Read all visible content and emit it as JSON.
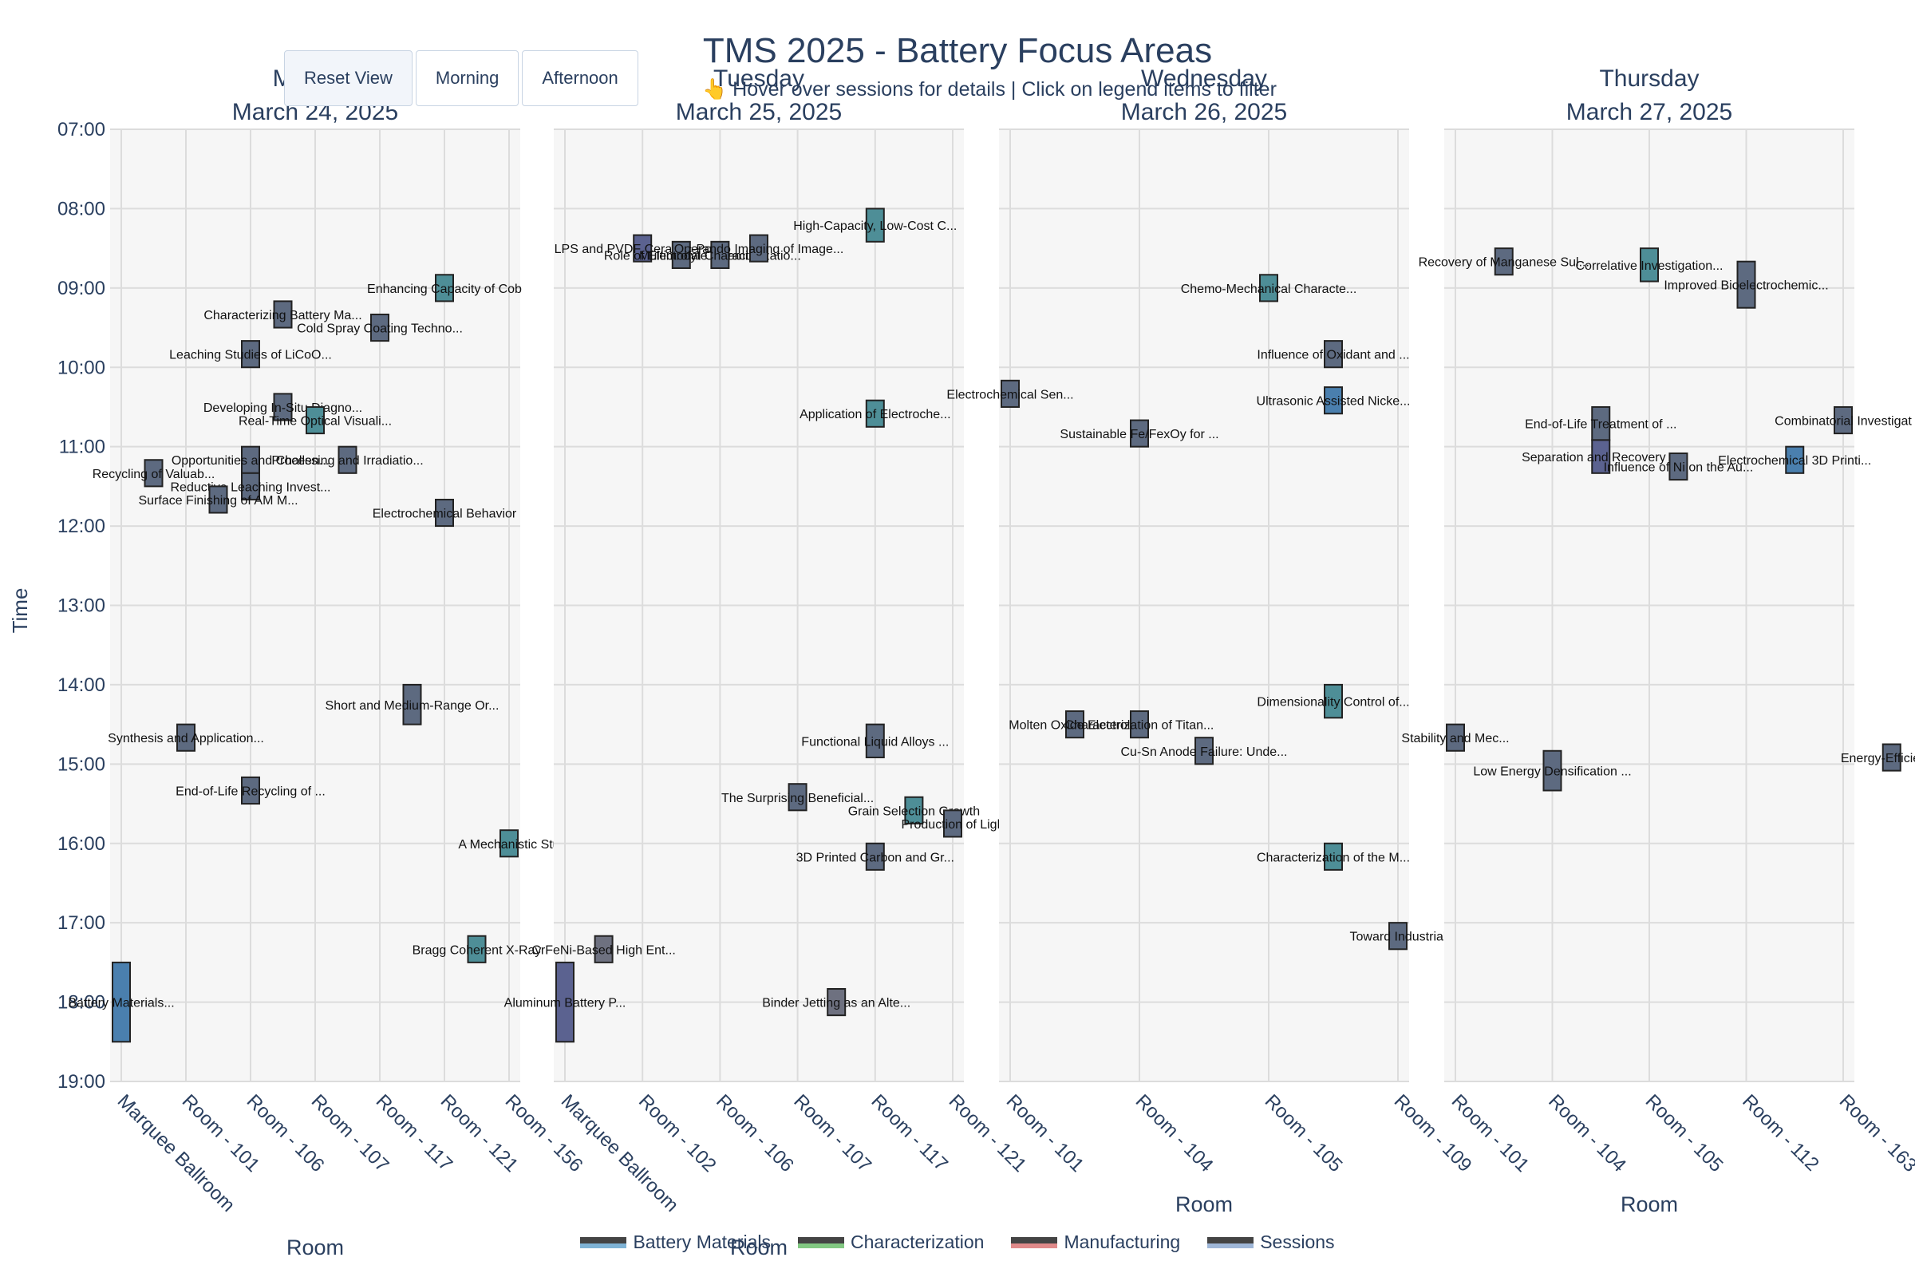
{
  "title": "TMS 2025 - Battery Focus Areas",
  "subtitle": "👆 Hover over sessions for details | Click on legend items to filter",
  "buttons": [
    {
      "label": "Reset View",
      "active": true
    },
    {
      "label": "Morning",
      "active": false
    },
    {
      "label": "Afternoon",
      "active": false
    }
  ],
  "legend": [
    {
      "label": "Battery Materials",
      "color": "#7fb3d5"
    },
    {
      "label": "Characterization",
      "color": "#82c882"
    },
    {
      "label": "Manufacturing",
      "color": "#e08a8a"
    },
    {
      "label": "Sessions",
      "color": "#9fb7d8"
    }
  ],
  "chart_data": {
    "type": "gantt",
    "ylabel": "Time",
    "yticks": [
      "07:00",
      "08:00",
      "09:00",
      "10:00",
      "11:00",
      "12:00",
      "13:00",
      "14:00",
      "15:00",
      "16:00",
      "17:00",
      "18:00",
      "19:00"
    ],
    "ylim": [
      "07:00",
      "19:00"
    ],
    "colors": {
      "slate": "#5d6a80",
      "teal": "#4e8e97",
      "blue": "#4a7fae",
      "indigo": "#5b6290",
      "gray": "#6e7180"
    },
    "panels": [
      {
        "day": "Monday",
        "date": "March 24, 2025",
        "xlabel": "Room",
        "rooms": [
          "Marquee Ballroom",
          "Room - 101",
          "Room - 106",
          "Room - 107",
          "Room - 117",
          "Room - 121",
          "Room - 156"
        ],
        "sessions": [
          {
            "label": "Leaching Studies of LiCoO...",
            "x": 2.0,
            "start": "09:40",
            "end": "10:00",
            "color": "slate"
          },
          {
            "label": "Characterizing Battery Ma...",
            "x": 2.5,
            "start": "09:10",
            "end": "09:30",
            "color": "slate"
          },
          {
            "label": "Cold Spray Coating Techno...",
            "x": 4.0,
            "start": "09:20",
            "end": "09:40",
            "color": "slate"
          },
          {
            "label": "Enhancing Capacity of Cob",
            "x": 5.0,
            "start": "08:50",
            "end": "09:10",
            "color": "teal"
          },
          {
            "label": "Developing In-Situ Diagno...",
            "x": 2.5,
            "start": "10:20",
            "end": "10:40",
            "color": "slate"
          },
          {
            "label": "Real-Time Optical Visuali...",
            "x": 3.0,
            "start": "10:30",
            "end": "10:50",
            "color": "teal"
          },
          {
            "label": "Opportunities and Challen...",
            "x": 2.0,
            "start": "11:00",
            "end": "11:20",
            "color": "slate"
          },
          {
            "label": "Recycling of Valuab...",
            "x": 0.5,
            "start": "11:10",
            "end": "11:30",
            "color": "slate"
          },
          {
            "label": "Reductive Leaching Invest...",
            "x": 2.0,
            "start": "11:20",
            "end": "11:40",
            "color": "slate"
          },
          {
            "label": "Surface Finishing of AM M...",
            "x": 1.5,
            "start": "11:30",
            "end": "11:50",
            "color": "slate"
          },
          {
            "label": "Processing and Irradiatio...",
            "x": 3.5,
            "start": "11:00",
            "end": "11:20",
            "color": "slate"
          },
          {
            "label": "Electrochemical Behavior",
            "x": 5.0,
            "start": "11:40",
            "end": "12:00",
            "color": "slate"
          },
          {
            "label": "Short and Medium-Range Or...",
            "x": 4.5,
            "start": "14:00",
            "end": "14:30",
            "color": "slate"
          },
          {
            "label": "Synthesis and Application...",
            "x": 1.0,
            "start": "14:30",
            "end": "14:50",
            "color": "slate"
          },
          {
            "label": "End-of-Life Recycling of ...",
            "x": 2.0,
            "start": "15:10",
            "end": "15:30",
            "color": "slate"
          },
          {
            "label": "A Mechanistic Stu",
            "x": 6.0,
            "start": "15:50",
            "end": "16:10",
            "color": "teal"
          },
          {
            "label": "Bragg Coherent X-Ray",
            "x": 5.5,
            "start": "17:10",
            "end": "17:30",
            "color": "teal"
          },
          {
            "label": "Battery Materials...",
            "x": 0.0,
            "start": "17:30",
            "end": "18:30",
            "color": "blue"
          }
        ]
      },
      {
        "day": "Tuesday",
        "date": "March 25, 2025",
        "xlabel": "Room",
        "rooms": [
          "Marquee Ballroom",
          "Room - 102",
          "Room - 106",
          "Room - 107",
          "Room - 117",
          "Room - 121"
        ],
        "sessions": [
          {
            "label": "LPS and PVDF Ceramic-Poly...",
            "x": 1.0,
            "start": "08:20",
            "end": "08:40",
            "color": "indigo"
          },
          {
            "label": "Role of Electrolyte Chemi...",
            "x": 1.5,
            "start": "08:25",
            "end": "08:45",
            "color": "slate"
          },
          {
            "label": "Multimodal Characterizatio...",
            "x": 2.0,
            "start": "08:25",
            "end": "08:45",
            "color": "slate"
          },
          {
            "label": "Operando Imaging of Image...",
            "x": 2.5,
            "start": "08:20",
            "end": "08:40",
            "color": "slate"
          },
          {
            "label": "High-Capacity, Low-Cost C...",
            "x": 4.0,
            "start": "08:00",
            "end": "08:25",
            "color": "teal"
          },
          {
            "label": "Application of Electroche...",
            "x": 4.0,
            "start": "10:25",
            "end": "10:45",
            "color": "teal"
          },
          {
            "label": "Functional Liquid Alloys ...",
            "x": 4.0,
            "start": "14:30",
            "end": "14:55",
            "color": "slate"
          },
          {
            "label": "The Surprising Beneficial...",
            "x": 3.0,
            "start": "15:15",
            "end": "15:35",
            "color": "slate"
          },
          {
            "label": "Grain Selection Growth",
            "x": 4.5,
            "start": "15:25",
            "end": "15:45",
            "color": "teal"
          },
          {
            "label": "Production of Ligh",
            "x": 5.0,
            "start": "15:35",
            "end": "15:55",
            "color": "slate"
          },
          {
            "label": "3D Printed Carbon and Gr...",
            "x": 4.0,
            "start": "16:00",
            "end": "16:20",
            "color": "slate"
          },
          {
            "label": "CrFeNi-Based High Ent...",
            "x": 0.5,
            "start": "17:10",
            "end": "17:30",
            "color": "gray"
          },
          {
            "label": "Binder Jetting as an Alte...",
            "x": 3.5,
            "start": "17:50",
            "end": "18:10",
            "color": "gray"
          },
          {
            "label": "Aluminum Battery P...",
            "x": 0.0,
            "start": "17:30",
            "end": "18:30",
            "color": "indigo"
          }
        ]
      },
      {
        "day": "Wednesday",
        "date": "March 26, 2025",
        "xlabel": "Room",
        "rooms": [
          "Room - 101",
          "Room - 104",
          "Room - 105",
          "Room - 109"
        ],
        "sessions": [
          {
            "label": "Chemo-Mechanical Characte...",
            "x": 2.0,
            "start": "08:50",
            "end": "09:10",
            "color": "teal"
          },
          {
            "label": "Influence of Oxidant and ...",
            "x": 2.5,
            "start": "09:40",
            "end": "10:00",
            "color": "slate"
          },
          {
            "label": "Electrochemical Sen...",
            "x": 0.0,
            "start": "10:10",
            "end": "10:30",
            "color": "slate"
          },
          {
            "label": "Ultrasonic Assisted Nicke...",
            "x": 2.5,
            "start": "10:15",
            "end": "10:35",
            "color": "blue"
          },
          {
            "label": "Sustainable Fe/FexOy for ...",
            "x": 1.0,
            "start": "10:40",
            "end": "11:00",
            "color": "slate"
          },
          {
            "label": "Dimensionality Control of...",
            "x": 2.5,
            "start": "14:00",
            "end": "14:25",
            "color": "teal"
          },
          {
            "label": "Molten Oxide Electrol...",
            "x": 0.5,
            "start": "14:20",
            "end": "14:40",
            "color": "slate"
          },
          {
            "label": "Characterization of Titan...",
            "x": 1.0,
            "start": "14:20",
            "end": "14:40",
            "color": "slate"
          },
          {
            "label": "Cu-Sn Anode Failure: Unde...",
            "x": 1.5,
            "start": "14:40",
            "end": "15:00",
            "color": "slate"
          },
          {
            "label": "Characterization of the M...",
            "x": 2.5,
            "start": "16:00",
            "end": "16:20",
            "color": "teal"
          },
          {
            "label": "Toward Industrial",
            "x": 3.0,
            "start": "17:00",
            "end": "17:20",
            "color": "slate"
          }
        ]
      },
      {
        "day": "Thursday",
        "date": "March 27, 2025",
        "xlabel": "Room",
        "rooms": [
          "Room - 101",
          "Room - 104",
          "Room - 105",
          "Room - 112",
          "Room - 163"
        ],
        "sessions": [
          {
            "label": "Recovery of Manganese Sul...",
            "x": 0.5,
            "start": "08:30",
            "end": "08:50",
            "color": "slate"
          },
          {
            "label": "Correlative Investigation...",
            "x": 2.0,
            "start": "08:30",
            "end": "08:55",
            "color": "teal"
          },
          {
            "label": "Improved Bioelectrochemic...",
            "x": 3.0,
            "start": "08:40",
            "end": "09:15",
            "color": "slate"
          },
          {
            "label": "Combinatorial Investigat",
            "x": 4.0,
            "start": "10:30",
            "end": "10:50",
            "color": "slate"
          },
          {
            "label": "End-of-Life Treatment of ...",
            "x": 1.5,
            "start": "10:30",
            "end": "10:55",
            "color": "slate"
          },
          {
            "label": "Separation and Recovery ...",
            "x": 1.5,
            "start": "10:55",
            "end": "11:20",
            "color": "indigo"
          },
          {
            "label": "Influence of Ni on the Au...",
            "x": 2.3,
            "start": "11:05",
            "end": "11:25",
            "color": "slate"
          },
          {
            "label": "Electrochemical 3D Printi...",
            "x": 3.5,
            "start": "11:00",
            "end": "11:20",
            "color": "blue"
          },
          {
            "label": "Stability and Mec...",
            "x": 0.0,
            "start": "14:30",
            "end": "14:50",
            "color": "slate"
          },
          {
            "label": "Low Energy Densification ...",
            "x": 1.0,
            "start": "14:50",
            "end": "15:20",
            "color": "slate"
          },
          {
            "label": "Energy-Efficient S",
            "x": 4.5,
            "start": "14:45",
            "end": "15:05",
            "color": "slate"
          }
        ]
      }
    ]
  }
}
